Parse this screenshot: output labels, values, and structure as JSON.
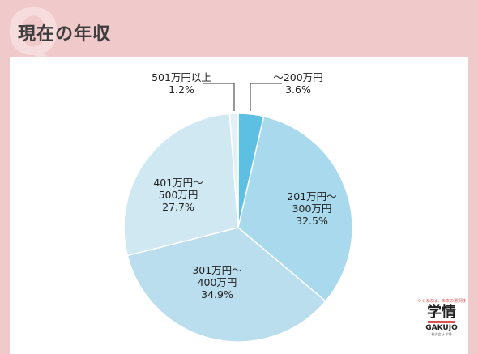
{
  "page": {
    "title": "現在の年収",
    "q_mark": "Q"
  },
  "chart_data": {
    "type": "pie",
    "title": "現在の年収",
    "slices": [
      {
        "name": "～200万円",
        "value": 3.6,
        "label": "3.6%",
        "color": "#5dbfe2"
      },
      {
        "name": "201万円～300万円",
        "value": 32.5,
        "label": "32.5%",
        "color": "#a9d9ec"
      },
      {
        "name": "301万円～400万円",
        "value": 34.9,
        "label": "34.9%",
        "color": "#bbdeee"
      },
      {
        "name": "401万円～500万円",
        "value": 27.7,
        "label": "27.7%",
        "color": "#cfe8f2"
      },
      {
        "name": "501万円以上",
        "value": 1.2,
        "label": "1.2%",
        "color": "#e3f1f7"
      }
    ]
  },
  "logo": {
    "tagline": "つくるのは、未来の選択肢",
    "kanji": "学情",
    "latin": "GAKUJO",
    "sub": "株式会社 学情"
  }
}
